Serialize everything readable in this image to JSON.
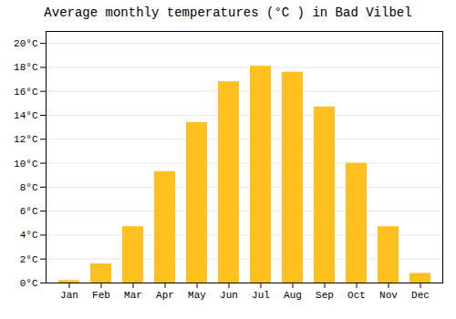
{
  "chart_data": {
    "type": "bar",
    "title": "Average monthly temperatures (°C ) in Bad Vilbel",
    "categories": [
      "Jan",
      "Feb",
      "Mar",
      "Apr",
      "May",
      "Jun",
      "Jul",
      "Aug",
      "Sep",
      "Oct",
      "Nov",
      "Dec"
    ],
    "values": [
      0.2,
      1.6,
      4.7,
      9.3,
      13.4,
      16.8,
      18.1,
      17.6,
      14.7,
      10.0,
      4.7,
      0.8
    ],
    "color": "#FFC020",
    "ylim": [
      0,
      21.0
    ],
    "yticks": [
      {
        "value": 0,
        "label": "0°C"
      },
      {
        "value": 2,
        "label": "2°C"
      },
      {
        "value": 4,
        "label": "4°C"
      },
      {
        "value": 6,
        "label": "6°C"
      },
      {
        "value": 8,
        "label": "8°C"
      },
      {
        "value": 10,
        "label": "10°C"
      },
      {
        "value": 12,
        "label": "12°C"
      },
      {
        "value": 14,
        "label": "14°C"
      },
      {
        "value": 16,
        "label": "16°C"
      },
      {
        "value": 18,
        "label": "18°C"
      },
      {
        "value": 20,
        "label": "20°C"
      }
    ],
    "grid": true
  }
}
